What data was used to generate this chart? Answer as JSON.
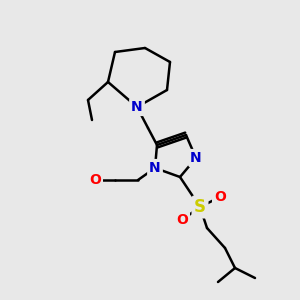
{
  "background_color": "#e8e8e8",
  "bond_color": "#000000",
  "bond_width": 1.8,
  "atom_colors": {
    "N": "#0000cc",
    "O": "#ff0000",
    "S": "#cccc00",
    "C": "#000000"
  },
  "font_size": 10,
  "fig_size": [
    3.0,
    3.0
  ],
  "dpi": 100
}
